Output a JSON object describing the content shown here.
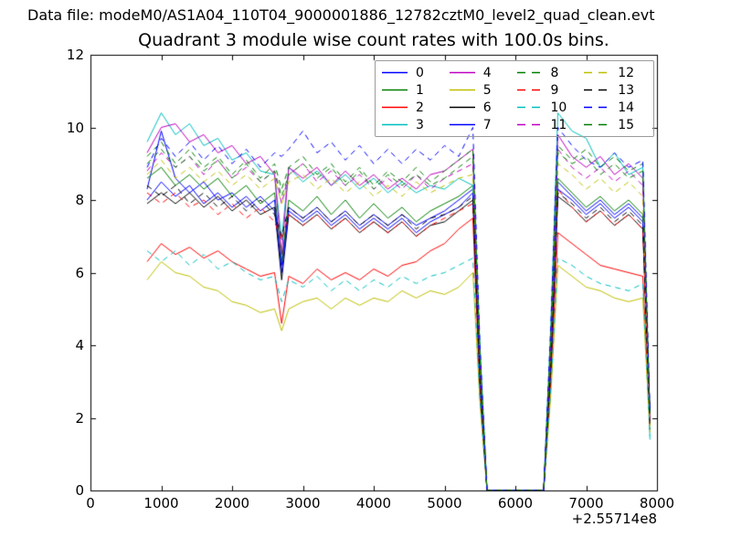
{
  "header": {
    "data_file": "Data file: modeM0/AS1A04_110T04_9000001886_12782cztM0_level2_quad_clean.evt"
  },
  "colors": {
    "background": "#ffffff",
    "axes": "#000000",
    "text": "#000000",
    "legend_border": "#9b9b9b"
  },
  "chart_data": {
    "type": "line",
    "title": "Quadrant 3 module wise count rates with 100.0s bins.",
    "quadrant": "Quadrant 3",
    "bin_size_s": 100.0,
    "x_axis": {
      "label": "",
      "range": [
        0,
        8000
      ],
      "ticks": [
        0,
        1000,
        2000,
        3000,
        4000,
        5000,
        6000,
        7000,
        8000
      ],
      "offset_text": "+2.55714e8"
    },
    "y_axis": {
      "label": "",
      "range": [
        0,
        12
      ],
      "ticks": [
        0,
        2,
        4,
        6,
        8,
        10,
        12
      ]
    },
    "legend": {
      "columns": 4,
      "order": "column-major",
      "position": "upper center-right"
    },
    "grid": false,
    "x": [
      800,
      1000,
      1200,
      1400,
      1600,
      1800,
      2000,
      2200,
      2400,
      2600,
      2700,
      2800,
      3000,
      3200,
      3400,
      3600,
      3800,
      4000,
      4200,
      4400,
      4600,
      4800,
      5000,
      5200,
      5400,
      5500,
      5600,
      6000,
      6400,
      6500,
      6600,
      6800,
      7000,
      7200,
      7400,
      7600,
      7800,
      7900
    ],
    "series": [
      {
        "name": "0",
        "color": "#0000ff",
        "linestyle": "solid",
        "values": [
          8.3,
          9.9,
          8.6,
          8.2,
          8.5,
          8.0,
          8.2,
          7.8,
          8.1,
          7.7,
          6.2,
          7.8,
          7.5,
          7.8,
          7.4,
          7.7,
          7.3,
          7.6,
          7.3,
          7.6,
          7.3,
          7.5,
          7.7,
          8.0,
          8.3,
          3.1,
          0,
          0,
          0,
          3.5,
          8.5,
          8.1,
          7.7,
          8.0,
          7.6,
          7.9,
          7.5,
          2.2
        ]
      },
      {
        "name": "1",
        "color": "#007f00",
        "linestyle": "solid",
        "values": [
          8.6,
          8.9,
          8.4,
          8.7,
          8.3,
          8.6,
          8.1,
          8.4,
          7.9,
          8.2,
          6.3,
          8.0,
          7.7,
          8.1,
          7.6,
          8.0,
          7.5,
          7.9,
          7.5,
          7.8,
          7.4,
          7.7,
          7.9,
          8.1,
          8.4,
          3.2,
          0,
          0,
          0,
          3.6,
          8.6,
          8.2,
          7.8,
          8.1,
          7.7,
          8.0,
          7.6,
          1.9
        ]
      },
      {
        "name": "2",
        "color": "#ff0000",
        "linestyle": "solid",
        "values": [
          6.3,
          6.8,
          6.5,
          6.7,
          6.4,
          6.6,
          6.3,
          6.1,
          5.9,
          6.0,
          4.6,
          5.9,
          5.7,
          6.1,
          5.8,
          6.0,
          5.8,
          6.1,
          5.9,
          6.2,
          6.3,
          6.6,
          6.8,
          7.2,
          7.5,
          2.7,
          0,
          0,
          0,
          3.0,
          7.1,
          6.8,
          6.5,
          6.2,
          6.1,
          6.0,
          5.9,
          1.8
        ]
      },
      {
        "name": "3",
        "color": "#00bfbf",
        "linestyle": "solid",
        "values": [
          9.6,
          10.4,
          9.8,
          10.1,
          9.5,
          9.7,
          9.1,
          9.3,
          8.8,
          8.7,
          6.9,
          8.9,
          8.5,
          8.8,
          8.4,
          8.7,
          8.3,
          8.6,
          8.2,
          8.5,
          8.2,
          8.4,
          8.3,
          8.6,
          8.4,
          4.0,
          0,
          0,
          0,
          4.5,
          10.4,
          9.9,
          9.7,
          8.9,
          9.3,
          8.7,
          8.9,
          1.4
        ]
      },
      {
        "name": "4",
        "color": "#bf00bf",
        "linestyle": "solid",
        "values": [
          9.3,
          10.0,
          10.1,
          9.6,
          9.8,
          9.3,
          9.5,
          9.0,
          9.2,
          8.7,
          6.5,
          8.9,
          8.6,
          8.9,
          8.4,
          8.8,
          8.4,
          8.7,
          8.3,
          8.6,
          8.3,
          8.7,
          8.8,
          9.1,
          9.4,
          3.5,
          0,
          0,
          0,
          4.0,
          9.8,
          9.2,
          8.9,
          9.2,
          8.7,
          9.0,
          8.6,
          2.0
        ]
      },
      {
        "name": "5",
        "color": "#bfbf00",
        "linestyle": "solid",
        "values": [
          5.8,
          6.3,
          6.0,
          5.9,
          5.6,
          5.5,
          5.2,
          5.1,
          4.9,
          5.0,
          4.4,
          5.0,
          5.2,
          5.3,
          5.0,
          5.3,
          5.1,
          5.3,
          5.2,
          5.5,
          5.3,
          5.5,
          5.4,
          5.6,
          6.0,
          2.4,
          0,
          0,
          0,
          2.6,
          6.2,
          5.9,
          5.6,
          5.5,
          5.3,
          5.2,
          5.3,
          1.6
        ]
      },
      {
        "name": "6",
        "color": "#000000",
        "linestyle": "solid",
        "values": [
          7.9,
          8.2,
          7.9,
          8.2,
          7.8,
          8.1,
          7.7,
          8.0,
          7.6,
          7.8,
          5.8,
          7.6,
          7.3,
          7.6,
          7.2,
          7.5,
          7.1,
          7.4,
          7.1,
          7.4,
          7.0,
          7.3,
          7.4,
          7.7,
          8.0,
          2.9,
          0,
          0,
          0,
          3.3,
          8.1,
          7.8,
          7.4,
          7.7,
          7.3,
          7.6,
          7.2,
          2.1
        ]
      },
      {
        "name": "7",
        "color": "#0000ff",
        "linestyle": "solid",
        "values": [
          8.0,
          8.5,
          8.1,
          8.4,
          7.9,
          8.2,
          7.8,
          8.1,
          7.7,
          8.0,
          6.0,
          7.7,
          7.4,
          7.7,
          7.3,
          7.6,
          7.2,
          7.5,
          7.2,
          7.5,
          7.1,
          7.4,
          7.6,
          7.8,
          8.2,
          3.0,
          0,
          0,
          0,
          3.4,
          8.3,
          8.0,
          7.6,
          7.9,
          7.5,
          7.8,
          7.4,
          2.0
        ]
      },
      {
        "name": "8",
        "color": "#007f00",
        "linestyle": "dashed",
        "values": [
          9.2,
          9.6,
          9.0,
          9.4,
          8.9,
          9.2,
          8.7,
          9.1,
          8.6,
          9.0,
          8.3,
          8.9,
          9.2,
          8.7,
          9.0,
          8.5,
          8.9,
          8.4,
          8.8,
          8.5,
          8.9,
          8.5,
          8.8,
          9.1,
          9.4,
          3.8,
          0,
          0,
          0,
          4.2,
          9.5,
          9.1,
          9.4,
          8.9,
          9.2,
          8.8,
          9.0,
          2.1
        ]
      },
      {
        "name": "9",
        "color": "#ff0000",
        "linestyle": "dashed",
        "values": [
          8.2,
          7.9,
          8.2,
          7.8,
          8.0,
          7.6,
          7.9,
          7.5,
          7.8,
          7.4,
          6.9,
          7.6,
          7.3,
          7.6,
          7.2,
          7.5,
          7.1,
          7.4,
          7.1,
          7.4,
          7.0,
          7.3,
          7.5,
          7.7,
          7.9,
          2.9,
          0,
          0,
          0,
          3.3,
          8.3,
          7.8,
          7.4,
          7.7,
          7.3,
          7.6,
          7.2,
          1.8
        ]
      },
      {
        "name": "10",
        "color": "#00bfbf",
        "linestyle": "dashed",
        "values": [
          6.6,
          6.3,
          6.6,
          6.2,
          6.5,
          6.1,
          6.3,
          6.0,
          5.8,
          5.9,
          5.2,
          5.8,
          5.6,
          5.9,
          5.5,
          5.8,
          5.5,
          5.8,
          5.6,
          5.9,
          5.7,
          5.9,
          6.0,
          6.2,
          6.4,
          2.5,
          0,
          0,
          0,
          2.8,
          6.4,
          6.2,
          5.9,
          5.7,
          5.6,
          5.5,
          5.7,
          1.5
        ]
      },
      {
        "name": "11",
        "color": "#bf00bf",
        "linestyle": "dashed",
        "values": [
          8.8,
          9.3,
          8.9,
          9.2,
          8.7,
          9.1,
          8.6,
          8.9,
          8.5,
          8.8,
          7.9,
          8.7,
          9.0,
          8.5,
          8.8,
          8.4,
          8.7,
          8.3,
          8.6,
          8.3,
          8.7,
          8.3,
          8.6,
          8.8,
          9.0,
          3.6,
          0,
          0,
          0,
          3.9,
          9.4,
          8.9,
          8.6,
          8.9,
          8.5,
          8.8,
          8.4,
          1.9
        ]
      },
      {
        "name": "12",
        "color": "#bfbf00",
        "linestyle": "dashed",
        "values": [
          8.7,
          9.1,
          8.6,
          8.9,
          8.5,
          8.8,
          8.4,
          8.7,
          8.3,
          8.6,
          7.9,
          8.5,
          8.7,
          8.3,
          8.6,
          8.2,
          8.5,
          8.1,
          8.4,
          8.1,
          8.5,
          8.2,
          8.4,
          8.6,
          8.7,
          3.4,
          0,
          0,
          0,
          3.7,
          9.0,
          8.7,
          8.3,
          8.6,
          8.2,
          8.5,
          8.1,
          1.8
        ]
      },
      {
        "name": "13",
        "color": "#000000",
        "linestyle": "dashed",
        "values": [
          8.4,
          8.1,
          8.4,
          7.9,
          8.2,
          7.8,
          8.1,
          7.7,
          8.0,
          7.6,
          7.0,
          7.8,
          7.5,
          7.8,
          7.4,
          7.7,
          7.3,
          7.6,
          7.3,
          7.6,
          7.2,
          7.5,
          7.6,
          7.8,
          8.1,
          3.0,
          0,
          0,
          0,
          3.4,
          8.2,
          7.9,
          7.5,
          7.8,
          7.4,
          7.7,
          7.3,
          1.7
        ]
      },
      {
        "name": "14",
        "color": "#0000ff",
        "linestyle": "dashed",
        "values": [
          8.9,
          9.7,
          9.2,
          9.6,
          9.1,
          9.5,
          9.0,
          9.4,
          8.9,
          9.3,
          9.2,
          9.4,
          9.9,
          9.3,
          9.6,
          9.1,
          9.5,
          9.0,
          9.4,
          9.0,
          9.4,
          9.1,
          9.5,
          9.2,
          10.0,
          4.0,
          0,
          0,
          0,
          4.5,
          10.0,
          9.5,
          9.1,
          8.9,
          9.3,
          8.9,
          9.1,
          2.2
        ]
      },
      {
        "name": "15",
        "color": "#007f00",
        "linestyle": "dashed",
        "values": [
          9.0,
          9.4,
          8.9,
          9.2,
          8.8,
          9.1,
          8.6,
          9.0,
          8.5,
          8.8,
          8.1,
          8.7,
          9.0,
          8.6,
          8.9,
          8.4,
          8.8,
          8.3,
          8.7,
          8.4,
          8.7,
          8.4,
          8.6,
          8.9,
          9.2,
          3.7,
          0,
          0,
          0,
          4.1,
          9.3,
          9.0,
          9.2,
          8.7,
          9.0,
          8.6,
          8.8,
          2.0
        ]
      }
    ]
  }
}
